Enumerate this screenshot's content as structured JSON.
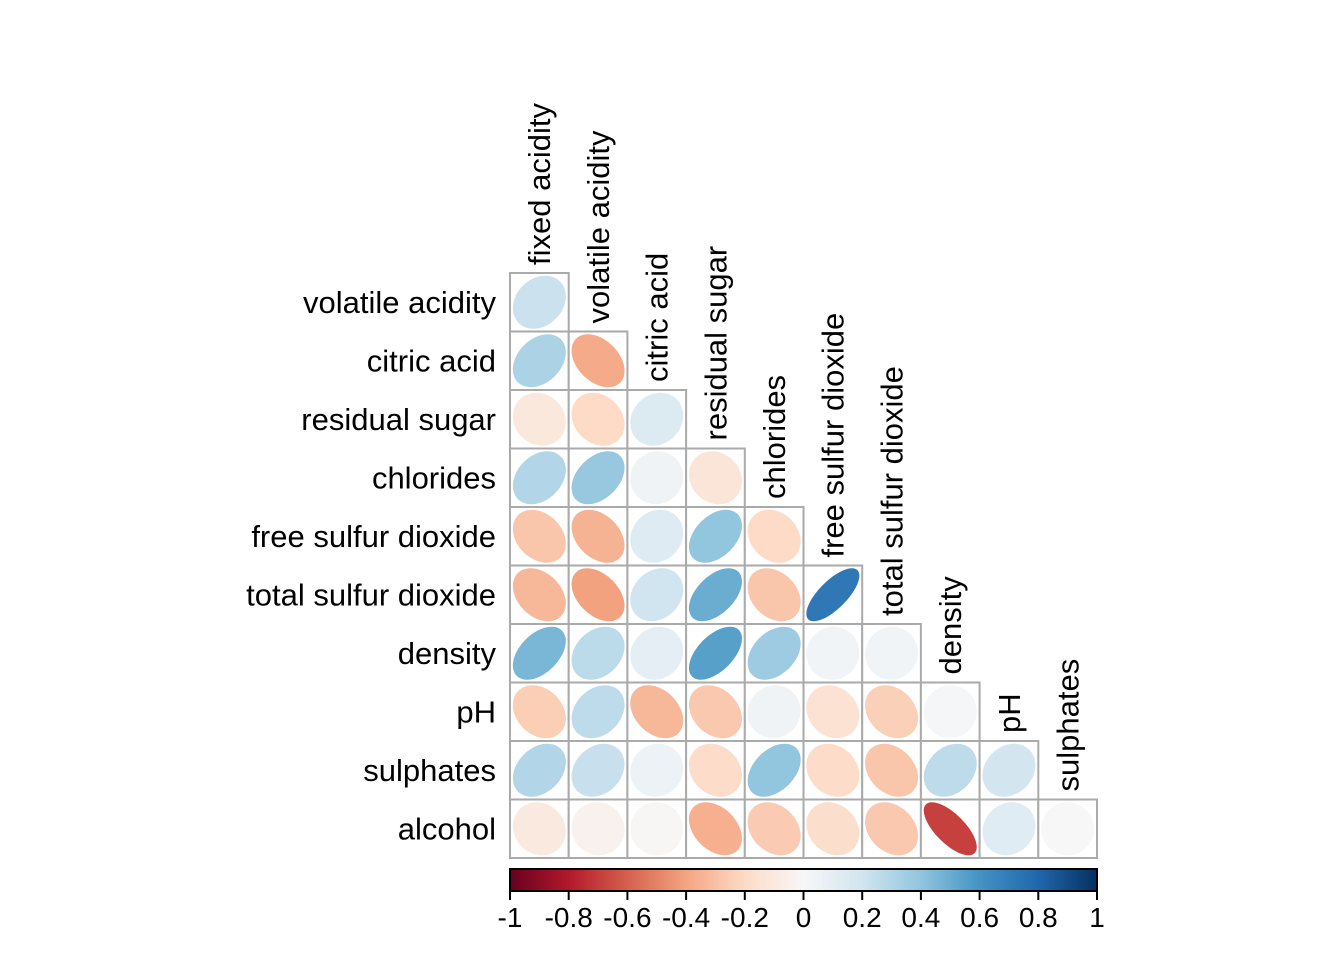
{
  "figure": {
    "background": "#ffffff",
    "kind": "correlation ellipse matrix (lower triangle)"
  },
  "chart_data": {
    "type": "heatmap",
    "glyph": "ellipse",
    "triangle": "lower",
    "row_labels": [
      "volatile acidity",
      "citric acid",
      "residual sugar",
      "chlorides",
      "free sulfur dioxide",
      "total sulfur dioxide",
      "density",
      "pH",
      "sulphates",
      "alcohol"
    ],
    "col_labels": [
      "fixed acidity",
      "volatile acidity",
      "citric acid",
      "residual sugar",
      "chlorides",
      "free sulfur dioxide",
      "total sulfur dioxide",
      "density",
      "pH",
      "sulphates"
    ],
    "values": [
      [
        0.22
      ],
      [
        0.32,
        -0.38
      ],
      [
        -0.11,
        -0.2,
        0.14
      ],
      [
        0.3,
        0.38,
        0.04,
        -0.13
      ],
      [
        -0.28,
        -0.35,
        0.13,
        0.4,
        -0.2
      ],
      [
        -0.33,
        -0.41,
        0.2,
        0.5,
        -0.28,
        0.72
      ],
      [
        0.46,
        0.27,
        0.1,
        0.55,
        0.36,
        0.03,
        0.03
      ],
      [
        -0.25,
        0.26,
        -0.33,
        -0.27,
        0.04,
        -0.15,
        -0.24,
        0.01
      ],
      [
        0.3,
        0.23,
        0.06,
        -0.19,
        0.4,
        -0.19,
        -0.28,
        0.26,
        0.19
      ],
      [
        -0.1,
        -0.04,
        -0.01,
        -0.36,
        -0.26,
        -0.18,
        -0.27,
        -0.69,
        0.12,
        0.0
      ]
    ],
    "value_range": [
      -1,
      1
    ],
    "grid": true,
    "colorbar": {
      "position": "bottom",
      "orientation": "horizontal",
      "min": -1,
      "max": 1,
      "tick_labels": [
        "-1",
        "-0.8",
        "-0.6",
        "-0.4",
        "-0.2",
        "0",
        "0.2",
        "0.4",
        "0.6",
        "0.8",
        "1"
      ],
      "palette": [
        "#67001F",
        "#B2182B",
        "#D6604D",
        "#F4A582",
        "#FDDBC7",
        "#F7F7F7",
        "#D1E5F0",
        "#92C5DE",
        "#4393C3",
        "#2166AC",
        "#053061"
      ]
    },
    "colors": {
      "grid_line": "#AAAAAA",
      "cell_background": "#FFFFFF",
      "colorbar_border": "#000000",
      "label_text": "#000000"
    }
  }
}
